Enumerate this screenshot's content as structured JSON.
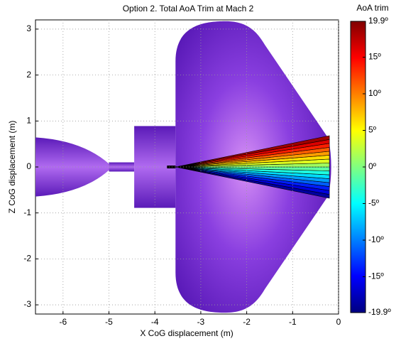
{
  "chart_data": {
    "type": "contour",
    "title": "Option 2. Total AoA Trim at Mach 2",
    "xlabel": "X CoG displacement (m)",
    "ylabel": "Z CoG displacement (m)",
    "colorbar_label": "AoA trim",
    "xlim": [
      -6.6,
      0
    ],
    "ylim": [
      -3.2,
      3.2
    ],
    "xticks": [
      -6,
      -5,
      -4,
      -3,
      -2,
      -1,
      0
    ],
    "yticks": [
      -3,
      -2,
      -1,
      0,
      1,
      2,
      3
    ],
    "grid": true,
    "colormap": "jet",
    "clim": [
      -19.9,
      19.9
    ],
    "cticks": [
      {
        "value": 19.9,
        "label": "19.9º"
      },
      {
        "value": 15,
        "label": "15º"
      },
      {
        "value": 10,
        "label": "10º"
      },
      {
        "value": 5,
        "label": "5º"
      },
      {
        "value": 0,
        "label": "0º"
      },
      {
        "value": -5,
        "label": "-5º"
      },
      {
        "value": -10,
        "label": "-10º"
      },
      {
        "value": -15,
        "label": "-15º"
      },
      {
        "value": -19.9,
        "label": "-19.9º"
      }
    ],
    "levels": [
      -19.9,
      -17.5,
      -15,
      -12.5,
      -10,
      -7.5,
      -5,
      -2.5,
      0,
      2.5,
      5,
      7.5,
      10,
      12.5,
      15,
      17.5,
      19.9
    ]
  }
}
